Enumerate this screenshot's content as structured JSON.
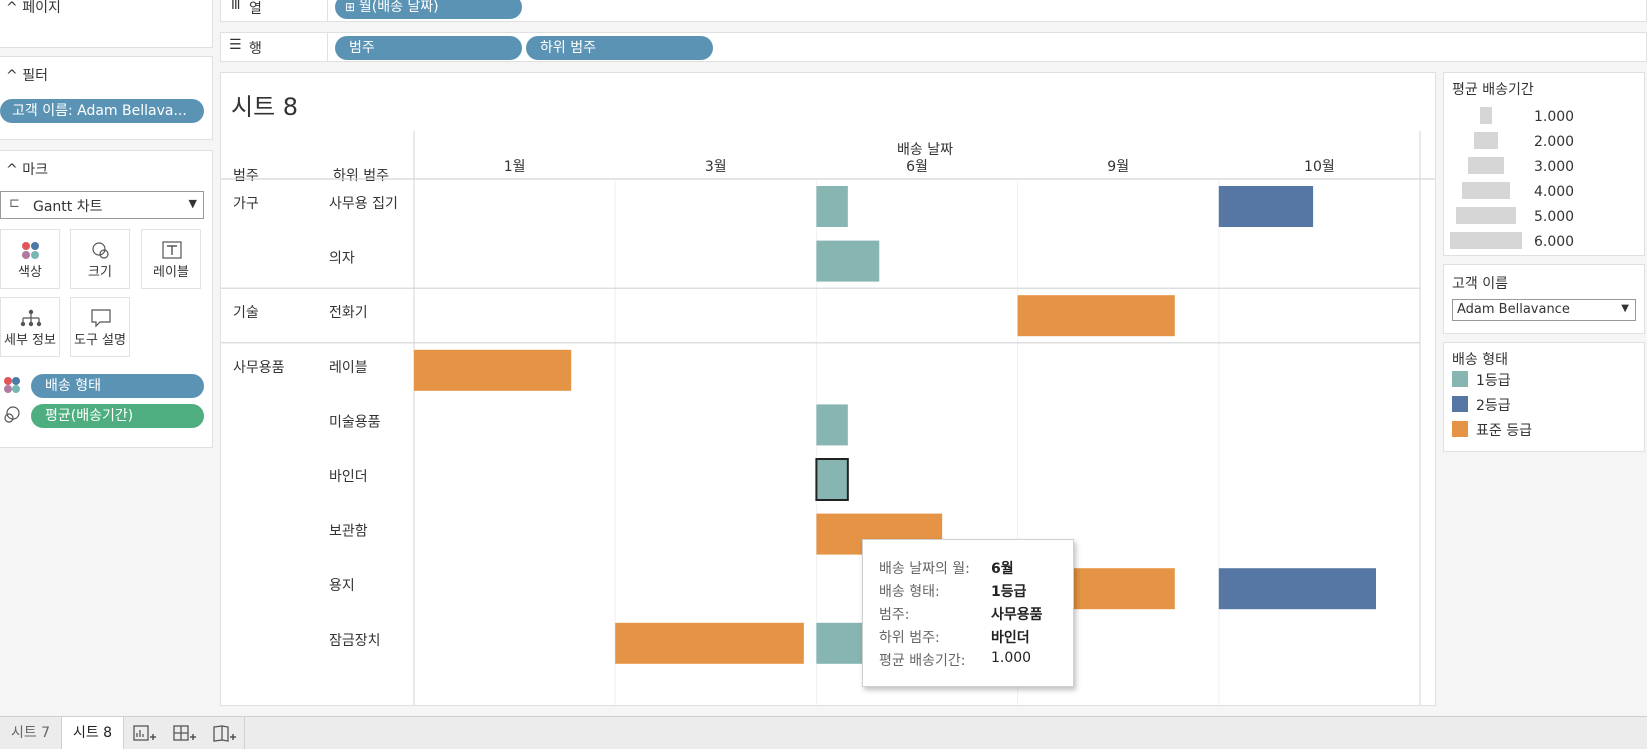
{
  "left_panel": {
    "pages_title": "페이지",
    "filters_title": "필터",
    "filter_pill": "고객 이름: Adam Bellava...",
    "marks_title": "마크",
    "mark_type": "Gantt 차트",
    "mark_buttons": {
      "color": "색상",
      "size": "크기",
      "label": "레이블",
      "detail": "세부 정보",
      "tooltip": "도구 설명"
    },
    "mark_pills": {
      "color_pill": "배송 형태",
      "size_pill": "평균(배송기간)"
    }
  },
  "shelves": {
    "columns_name": "열",
    "columns_pill": "월(배송 날짜)",
    "rows_name": "행",
    "rows_pills": [
      "범주",
      "하위 범주"
    ]
  },
  "sheet": {
    "title": "시트 8",
    "col_header_category": "범주",
    "col_header_subcategory": "하위 범주",
    "top_axis_title": "배송 날짜"
  },
  "chart_data": {
    "type": "gantt",
    "x_axis_title": "배송 날짜",
    "months": [
      "1월",
      "3월",
      "6월",
      "9월",
      "10월"
    ],
    "categories": [
      {
        "name": "가구",
        "subcategories": [
          "사무용 집기",
          "의자"
        ]
      },
      {
        "name": "기술",
        "subcategories": [
          "전화기"
        ]
      },
      {
        "name": "사무용품",
        "subcategories": [
          "레이블",
          "미술용품",
          "바인더",
          "보관함",
          "용지",
          "잠금장치"
        ]
      }
    ],
    "bars": [
      {
        "category": "가구",
        "subcategory": "사무용 집기",
        "month": "6월",
        "ship_mode": "1등급",
        "avg_ship_days": 1.0
      },
      {
        "category": "가구",
        "subcategory": "사무용 집기",
        "month": "10월",
        "ship_mode": "2등급",
        "avg_ship_days": 3.0
      },
      {
        "category": "가구",
        "subcategory": "의자",
        "month": "6월",
        "ship_mode": "1등급",
        "avg_ship_days": 2.0
      },
      {
        "category": "기술",
        "subcategory": "전화기",
        "month": "9월",
        "ship_mode": "표준 등급",
        "avg_ship_days": 5.0
      },
      {
        "category": "사무용품",
        "subcategory": "레이블",
        "month": "1월",
        "ship_mode": "표준 등급",
        "avg_ship_days": 5.0
      },
      {
        "category": "사무용품",
        "subcategory": "미술용품",
        "month": "6월",
        "ship_mode": "1등급",
        "avg_ship_days": 1.0
      },
      {
        "category": "사무용품",
        "subcategory": "바인더",
        "month": "6월",
        "ship_mode": "1등급",
        "avg_ship_days": 1.0,
        "selected": true
      },
      {
        "category": "사무용품",
        "subcategory": "보관함",
        "month": "6월",
        "ship_mode": "표준 등급",
        "avg_ship_days": 4.0
      },
      {
        "category": "사무용품",
        "subcategory": "용지",
        "month": "9월",
        "ship_mode": "표준 등급",
        "avg_ship_days": 5.0
      },
      {
        "category": "사무용품",
        "subcategory": "용지",
        "month": "10월",
        "ship_mode": "2등급",
        "avg_ship_days": 5.0
      },
      {
        "category": "사무용품",
        "subcategory": "잠금장치",
        "month": "3월",
        "ship_mode": "표준 등급",
        "avg_ship_days": 6.0
      },
      {
        "category": "사무용품",
        "subcategory": "잠금장치",
        "month": "6월",
        "ship_mode": "1등급",
        "avg_ship_days": 2.0
      }
    ]
  },
  "legends": {
    "size_title": "평균 배송기간",
    "size_values": [
      "1.000",
      "2.000",
      "3.000",
      "4.000",
      "5.000",
      "6.000"
    ],
    "filter_title": "고객 이름",
    "filter_value": "Adam Bellavance",
    "color_title": "배송 형태",
    "color_items": [
      {
        "label": "1등급",
        "color": "#86b5b2"
      },
      {
        "label": "2등급",
        "color": "#5677a4"
      },
      {
        "label": "표준 등급",
        "color": "#e49444"
      }
    ]
  },
  "tooltip": {
    "rows": [
      {
        "key": "배송 날짜의 월:",
        "value": "6월"
      },
      {
        "key": "배송 형태:",
        "value": "1등급"
      },
      {
        "key": "범주:",
        "value": "사무용품"
      },
      {
        "key": "하위 범주:",
        "value": "바인더"
      },
      {
        "key": "평균 배송기간:",
        "value": "1.000"
      }
    ]
  },
  "tabs": [
    "시트 7",
    "시트 8"
  ],
  "colors": {
    "pill_blue": "#5b93b4",
    "pill_green": "#4fae80"
  }
}
